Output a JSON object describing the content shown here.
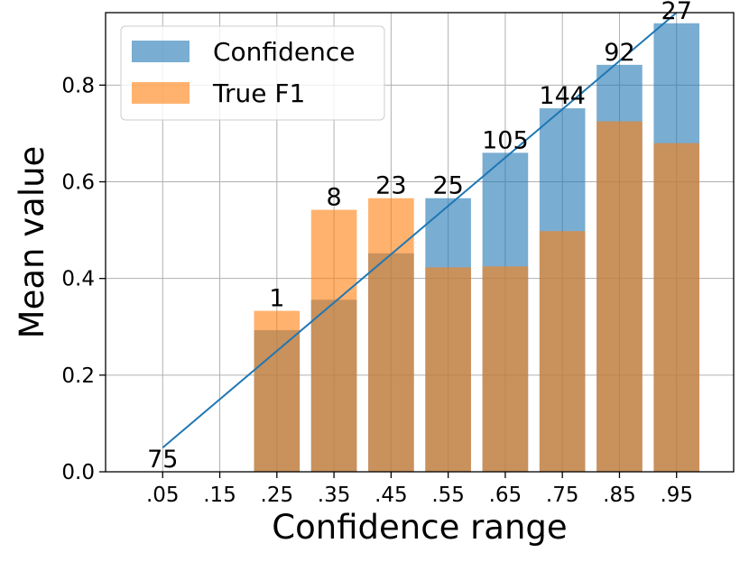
{
  "chart_data": {
    "type": "bar",
    "title": "",
    "xlabel": "Confidence range",
    "ylabel": "Mean value",
    "categories": [
      ".05",
      ".15",
      ".25",
      ".35",
      ".45",
      ".55",
      ".65",
      ".75",
      ".85",
      ".95"
    ],
    "series": [
      {
        "name": "Confidence",
        "color": "#1f77b4",
        "values": [
          null,
          null,
          0.293,
          0.356,
          0.452,
          0.566,
          0.66,
          0.752,
          0.842,
          0.928
        ]
      },
      {
        "name": "True F1",
        "color": "#ff7f0e",
        "values": [
          null,
          null,
          0.333,
          0.542,
          0.566,
          0.423,
          0.425,
          0.498,
          0.725,
          0.68
        ]
      }
    ],
    "bar_labels": [
      "75",
      "",
      "1",
      "8",
      "23",
      "25",
      "105",
      "144",
      "92",
      "27"
    ],
    "bar_label_values": [
      0.0,
      null,
      0.333,
      0.542,
      0.566,
      0.566,
      0.66,
      0.752,
      0.842,
      0.928
    ],
    "reference_line": {
      "x": [
        0.05,
        0.95
      ],
      "y": [
        0.05,
        0.95
      ],
      "color": "#1f77b4"
    },
    "ylim": [
      0,
      0.95
    ],
    "xlim": [
      -0.05,
      1.05
    ],
    "yticks": [
      0.0,
      0.2,
      0.4,
      0.6,
      0.8
    ],
    "ytick_labels": [
      "0.0",
      "0.2",
      "0.4",
      "0.6",
      "0.8"
    ],
    "bar_alpha": 0.6,
    "grid": true,
    "legend_position": "top-left"
  }
}
